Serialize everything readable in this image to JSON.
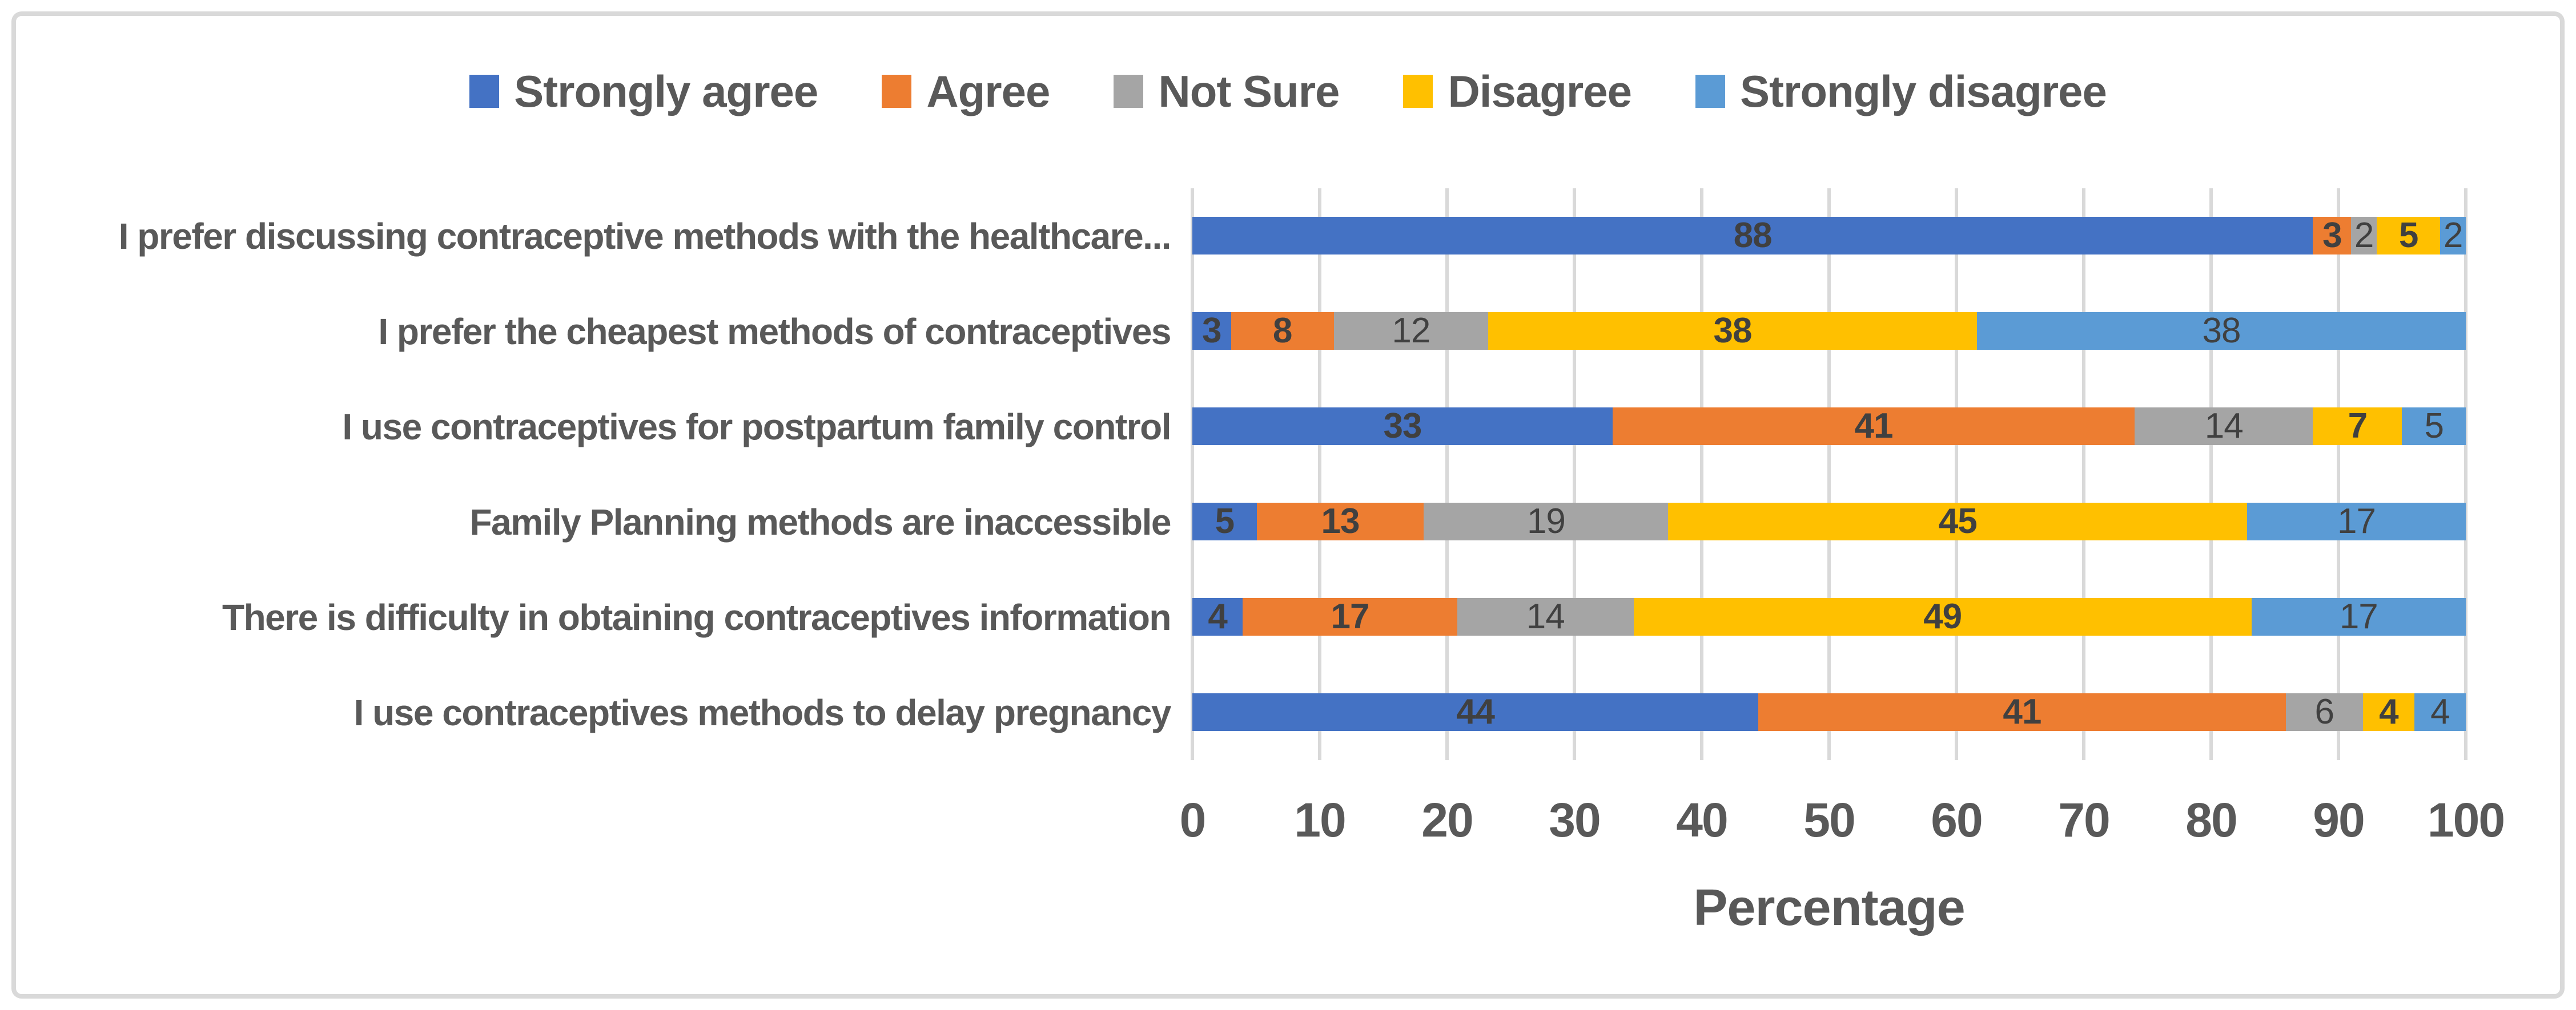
{
  "chart_data": {
    "type": "bar",
    "subtype": "horizontal-100pct-stacked",
    "title": "",
    "xlabel": "Percentage",
    "xlim": [
      0,
      100
    ],
    "x_ticks": [
      0,
      10,
      20,
      30,
      40,
      50,
      60,
      70,
      80,
      90,
      100
    ],
    "grid": "vertical-gridlines-on",
    "legend_position": "top",
    "categories": [
      "I prefer discussing contraceptive methods with the healthcare...",
      "I prefer the cheapest methods of contraceptives",
      "I use  contraceptives for postpartum family control",
      "Family Planning methods are inaccessible",
      "There is difficulty in obtaining contraceptives information",
      "I use contraceptives methods to delay pregnancy"
    ],
    "series": [
      {
        "name": "Strongly agree",
        "color": "#4472C4",
        "bold_labels": true,
        "values": [
          88,
          3,
          33,
          5,
          4,
          44
        ]
      },
      {
        "name": "Agree",
        "color": "#ED7D31",
        "bold_labels": true,
        "values": [
          3,
          8,
          41,
          13,
          17,
          41
        ]
      },
      {
        "name": "Not Sure",
        "color": "#A5A5A5",
        "bold_labels": false,
        "values": [
          2,
          12,
          14,
          19,
          14,
          6
        ]
      },
      {
        "name": "Disagree",
        "color": "#FFC000",
        "bold_labels": true,
        "values": [
          5,
          38,
          7,
          45,
          49,
          4
        ]
      },
      {
        "name": "Strongly disagree",
        "color": "#5B9BD5",
        "bold_labels": false,
        "values": [
          2,
          38,
          5,
          17,
          17,
          4
        ]
      }
    ]
  },
  "style_colors": {
    "frame_border": "#D9D9D9",
    "gridline": "#D9D9D9",
    "text": "#595959",
    "value_label_text": "#404040",
    "background": "#FFFFFF"
  }
}
